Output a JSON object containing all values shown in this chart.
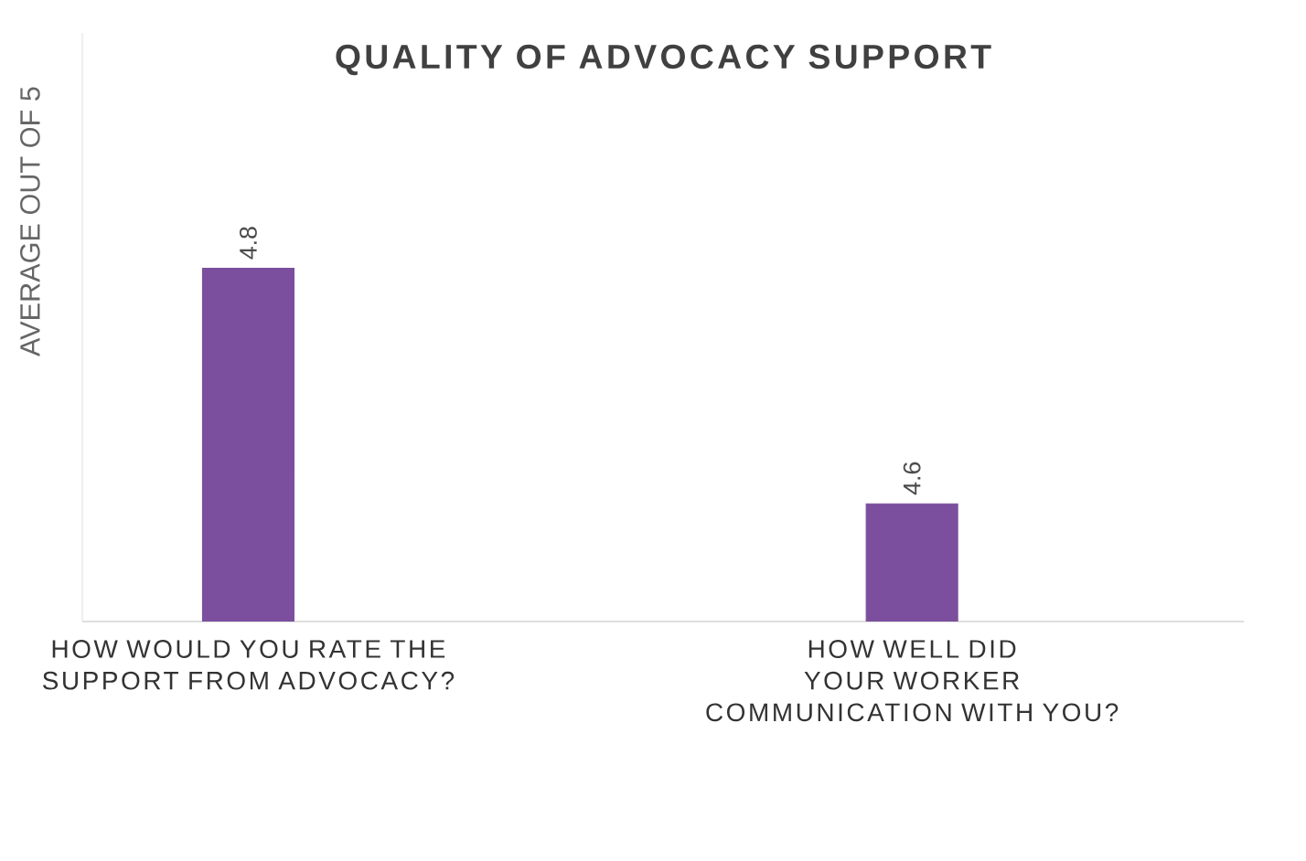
{
  "chart_data": {
    "type": "bar",
    "title": "QUALITY OF ADVOCACY SUPPORT",
    "ylabel": "AVERAGE OUT OF 5",
    "categories": [
      "HOW WOULD YOU RATE THE SUPPORT FROM ADVOCACY?",
      "HOW WELL DID YOUR WORKER COMMUNICATION WITH YOU?"
    ],
    "values": [
      4.8,
      4.6
    ],
    "color": "#7b4f9e",
    "ylim": [
      4.5,
      5.0
    ],
    "data_labels": true,
    "tick_labels": "x"
  }
}
